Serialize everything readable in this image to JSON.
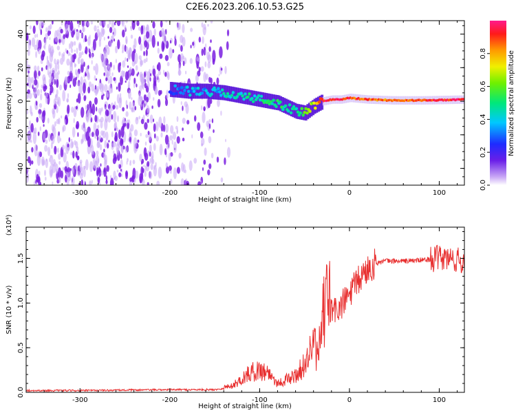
{
  "title": "C2E6.2023.206.10.53.G25",
  "colors": {
    "snr_line": "#e83030",
    "scatter_purple": "#7a1fe0",
    "axis": "#000000"
  },
  "chart_data": [
    {
      "type": "heatmap",
      "xlabel": "Height of straight line (km)",
      "ylabel": "Frequency (Hz)",
      "xlim": [
        -360,
        128
      ],
      "ylim": [
        -50,
        48
      ],
      "x_ticks": [
        -300,
        -200,
        -100,
        0,
        100
      ],
      "y_ticks": [
        -40,
        -20,
        0,
        20,
        40
      ],
      "x_tick_labels": [
        "-300",
        "-200",
        "-100",
        "0",
        "100"
      ],
      "y_tick_labels": [
        "-40",
        "-20",
        "0",
        "20",
        "40"
      ],
      "colorbar": {
        "label": "Normalized spectral amplitude",
        "range": [
          0.0,
          1.0
        ],
        "tick_values": [
          0.0,
          0.2,
          0.4,
          0.6,
          0.8
        ],
        "tick_labels": [
          "0.0",
          "0.2",
          "0.4",
          "0.6",
          "0.8"
        ],
        "colormap": "rainbow"
      },
      "tone_trace": {
        "heights": [
          -200,
          -180,
          -160,
          -140,
          -120,
          -100,
          -80,
          -60,
          -50,
          -40,
          -30,
          -20,
          -10,
          0,
          20,
          50,
          80,
          128
        ],
        "frequencies": [
          7,
          6,
          6,
          5,
          3,
          1,
          -1,
          -6,
          -7,
          -3,
          0,
          1,
          1,
          2,
          1,
          0.5,
          0.5,
          1
        ],
        "amplitudes": [
          0.3,
          0.35,
          0.35,
          0.4,
          0.45,
          0.45,
          0.5,
          0.45,
          0.6,
          0.65,
          0.9,
          0.95,
          0.95,
          0.9,
          0.85,
          0.85,
          0.9,
          0.95
        ]
      }
    },
    {
      "type": "line",
      "xlabel": "Height of straight line (km)",
      "ylabel": "SNR (10 * v/v)",
      "y_scale_label": "(x10⁴)",
      "xlim": [
        -360,
        128
      ],
      "ylim": [
        0,
        1.85
      ],
      "x_ticks": [
        -300,
        -200,
        -100,
        0,
        100
      ],
      "y_ticks": [
        0.0,
        0.5,
        1.0,
        1.5
      ],
      "x_tick_labels": [
        "-300",
        "-200",
        "-100",
        "0",
        "100"
      ],
      "y_tick_labels": [
        "0.0",
        "0.5",
        "1.0",
        "1.5"
      ],
      "series": [
        {
          "x": [
            -360,
            -300,
            -200,
            -150,
            -130,
            -120,
            -110,
            -100,
            -90,
            -80,
            -60,
            -50,
            -45,
            -40,
            -35,
            -30,
            -25,
            -20,
            -10,
            0,
            10,
            20,
            30,
            40,
            60,
            80,
            100,
            110,
            120,
            128
          ],
          "y": [
            0.02,
            0.02,
            0.03,
            0.03,
            0.06,
            0.12,
            0.18,
            0.2,
            0.18,
            0.08,
            0.15,
            0.25,
            0.35,
            0.45,
            0.3,
            0.65,
            0.85,
            0.9,
            0.95,
            1.1,
            1.25,
            1.38,
            1.45,
            1.47,
            1.47,
            1.48,
            1.5,
            1.5,
            1.48,
            1.45
          ]
        }
      ]
    }
  ]
}
